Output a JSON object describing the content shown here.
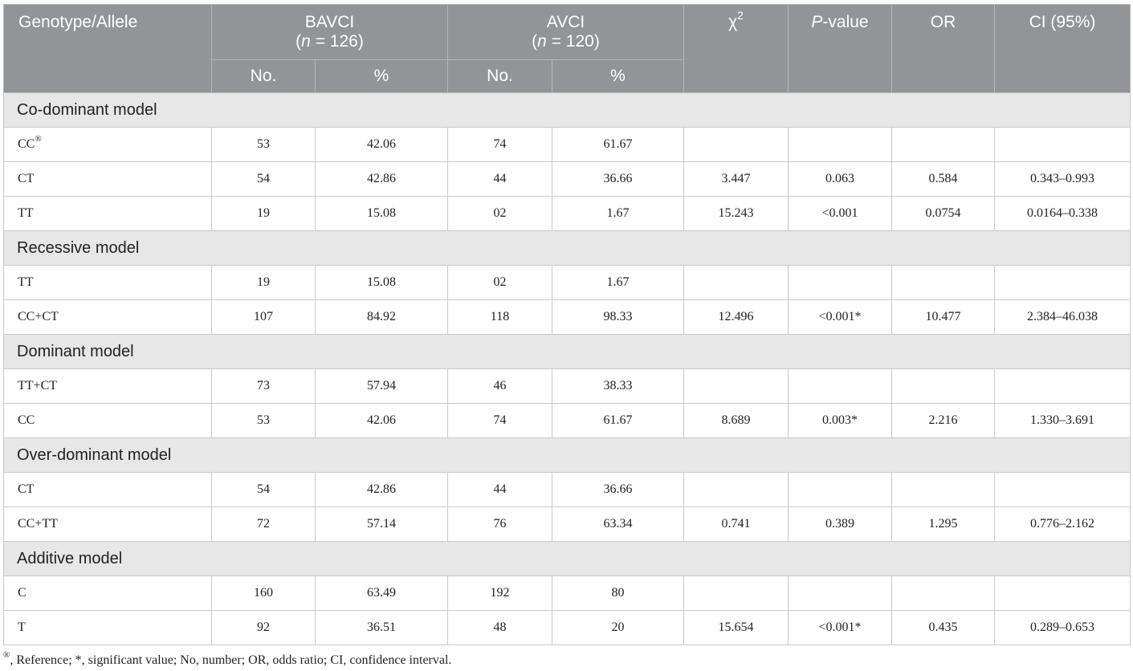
{
  "header": {
    "genotype": "Genotype/Allele",
    "groups": [
      {
        "name": "BAVCI",
        "sample": [
          "(",
          "n",
          " = 126)"
        ]
      },
      {
        "name": "AVCI",
        "sample": [
          "(",
          "n",
          " = 120)"
        ]
      }
    ],
    "chi": {
      "symbol": "χ",
      "exponent": "2"
    },
    "pvalue": {
      "letter": "P",
      "rest": "-value"
    },
    "or": "OR",
    "ci": "CI (95%)",
    "subcolumns": [
      "No.",
      "%",
      "No.",
      "%"
    ]
  },
  "sections": [
    {
      "title": "Co-dominant model",
      "rows": [
        {
          "label": "CC",
          "sup": "®",
          "cells": [
            "53",
            "42.06",
            "74",
            "61.67"
          ]
        },
        {
          "label": "CT",
          "cells": [
            "54",
            "42.86",
            "44",
            "36.66",
            "3.447",
            "0.063",
            "0.584",
            "0.343–0.993"
          ]
        },
        {
          "label": "TT",
          "cells": [
            "19",
            "15.08",
            "02",
            "1.67",
            "15.243",
            "<0.001",
            "0.0754",
            "0.0164–0.338"
          ]
        }
      ]
    },
    {
      "title": "Recessive model",
      "rows": [
        {
          "label": "TT",
          "cells": [
            "19",
            "15.08",
            "02",
            "1.67"
          ]
        },
        {
          "label": "CC+CT",
          "cells": [
            "107",
            "84.92",
            "118",
            "98.33",
            "12.496",
            "<0.001*",
            "10.477",
            "2.384–46.038"
          ]
        }
      ]
    },
    {
      "title": "Dominant model",
      "rows": [
        {
          "label": "TT+CT",
          "cells": [
            "73",
            "57.94",
            "46",
            "38.33"
          ]
        },
        {
          "label": "CC",
          "cells": [
            "53",
            "42.06",
            "74",
            "61.67",
            "8.689",
            "0.003*",
            "2.216",
            "1.330–3.691"
          ]
        }
      ]
    },
    {
      "title": "Over-dominant model",
      "rows": [
        {
          "label": "CT",
          "cells": [
            "54",
            "42.86",
            "44",
            "36.66"
          ]
        },
        {
          "label": "CC+TT",
          "cells": [
            "72",
            "57.14",
            "76",
            "63.34",
            "0.741",
            "0.389",
            "1.295",
            "0.776–2.162"
          ]
        }
      ]
    },
    {
      "title": "Additive model",
      "rows": [
        {
          "label": "C",
          "cells": [
            "160",
            "63.49",
            "192",
            "80"
          ]
        },
        {
          "label": "T",
          "cells": [
            "92",
            "36.51",
            "48",
            "20",
            "15.654",
            "<0.001*",
            "0.435",
            "0.289–0.653"
          ]
        }
      ]
    }
  ],
  "footnote": {
    "mark": "®",
    "text": ", Reference; *, significant value; No, number; OR, odds ratio; CI, confidence interval."
  }
}
